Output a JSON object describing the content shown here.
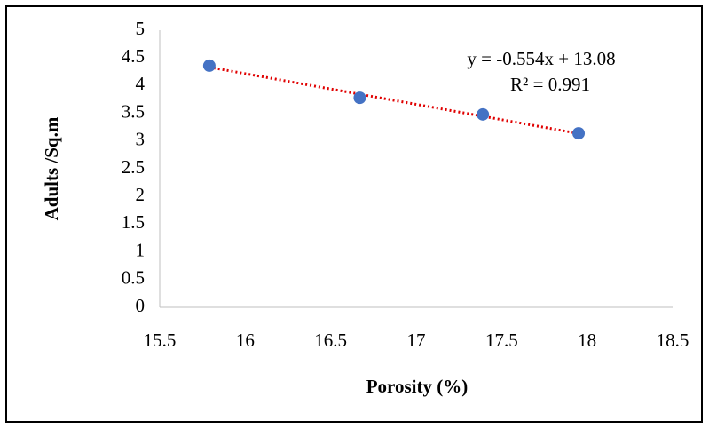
{
  "chart_data": {
    "type": "scatter",
    "x_label": "Porosity (%)",
    "y_label": "Adults /Sq.m",
    "series": [
      {
        "color": "#4472c4",
        "x": [
          15.79,
          16.67,
          17.39,
          17.95
        ],
        "values": [
          4.36,
          3.78,
          3.48,
          3.14
        ]
      }
    ],
    "trendline": {
      "slope": -0.554,
      "intercept": 13.08,
      "color": "#e00000",
      "equation": "y = -0.554x + 13.08",
      "r2_label": "R² = 0.991"
    },
    "xlim": [
      15.5,
      18.5
    ],
    "xticks": [
      15.5,
      16,
      16.5,
      17,
      17.5,
      18,
      18.5
    ],
    "ylim": [
      0,
      5
    ],
    "yticks": [
      0,
      0.5,
      1,
      1.5,
      2,
      2.5,
      3,
      3.5,
      4,
      4.5,
      5
    ],
    "grid": false
  }
}
